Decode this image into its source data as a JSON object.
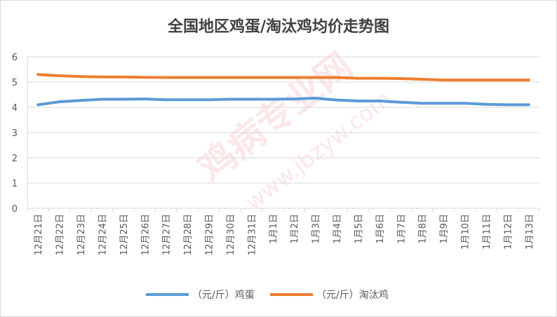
{
  "colors": {
    "egg": "#5b9bd5",
    "hen": "#ed7d31",
    "axis": "#d9d9d9",
    "grid": "#d9d9d9",
    "text": "#595959",
    "watermark": "#e8202a"
  },
  "watermark": {
    "text_main": "鸡病专业网",
    "text_url": "www.jbzyw.com"
  },
  "chart_data": {
    "type": "line",
    "title": "全国地区鸡蛋/淘汰鸡均价走势图",
    "xlabel": "",
    "ylabel": "",
    "ylim": [
      0,
      6
    ],
    "yticks": [
      0,
      1,
      2,
      3,
      4,
      5,
      6
    ],
    "grid": true,
    "legend_position": "bottom",
    "categories": [
      "12月21日",
      "12月22日",
      "12月23日",
      "12月24日",
      "12月25日",
      "12月26日",
      "12月27日",
      "12月28日",
      "12月29日",
      "12月30日",
      "12月31日",
      "1月1日",
      "1月2日",
      "1月3日",
      "1月4日",
      "1月5日",
      "1月6日",
      "1月7日",
      "1月8日",
      "1月9日",
      "1月10日",
      "1月11日",
      "1月12日",
      "1月13日"
    ],
    "series": [
      {
        "name": "（元/斤）鸡蛋",
        "color": "#5b9bd5",
        "values": [
          4.1,
          4.22,
          4.27,
          4.32,
          4.32,
          4.33,
          4.3,
          4.3,
          4.3,
          4.32,
          4.32,
          4.32,
          4.33,
          4.36,
          4.29,
          4.25,
          4.25,
          4.2,
          4.16,
          4.16,
          4.16,
          4.12,
          4.1,
          4.1
        ]
      },
      {
        "name": "（元/斤）淘汰鸡",
        "color": "#ed7d31",
        "values": [
          5.3,
          5.25,
          5.22,
          5.2,
          5.2,
          5.19,
          5.18,
          5.18,
          5.18,
          5.18,
          5.18,
          5.18,
          5.18,
          5.18,
          5.18,
          5.15,
          5.15,
          5.14,
          5.11,
          5.08,
          5.08,
          5.08,
          5.08,
          5.08
        ]
      }
    ]
  }
}
